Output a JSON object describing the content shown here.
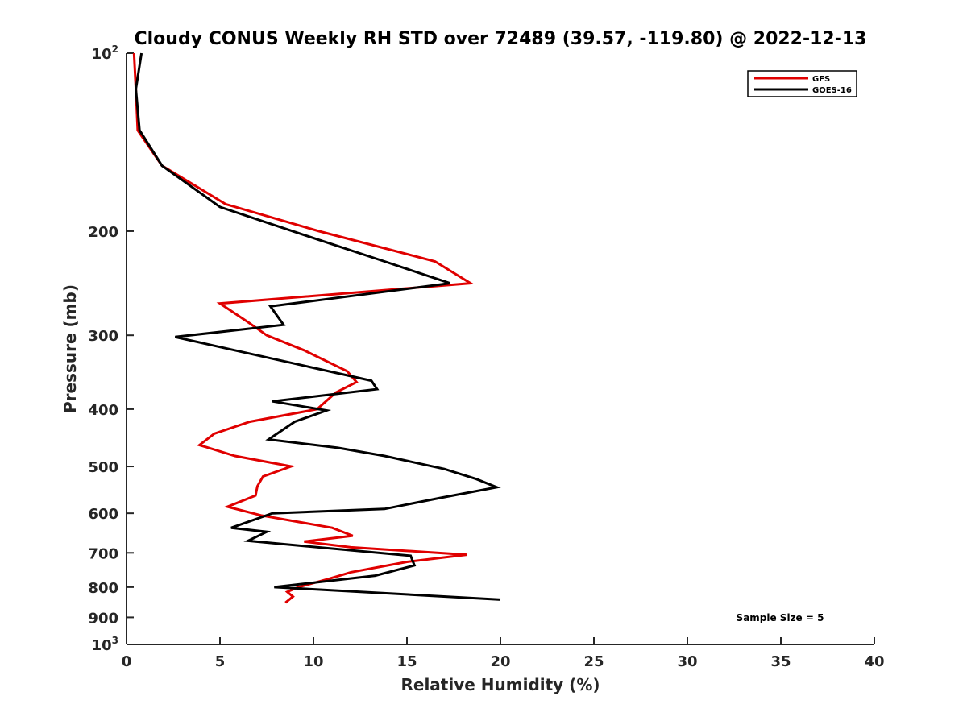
{
  "chart_data": {
    "type": "line",
    "title": "Cloudy CONUS Weekly RH STD over 72489 (39.57, -119.80) @ 2022-12-13",
    "xlabel": "Relative Humidity (%)",
    "ylabel": "Pressure (mb)",
    "xlim": [
      0,
      40
    ],
    "ylim": [
      100,
      1000
    ],
    "y_scale": "log",
    "y_reversed": true,
    "x_ticks": [
      "0",
      "5",
      "10",
      "15",
      "20",
      "25",
      "30",
      "35",
      "40"
    ],
    "y_ticks": [
      {
        "value": 100,
        "base": "10",
        "exp": "2"
      },
      {
        "value": 200,
        "label": "200"
      },
      {
        "value": 300,
        "label": "300"
      },
      {
        "value": 400,
        "label": "400"
      },
      {
        "value": 500,
        "label": "500"
      },
      {
        "value": 600,
        "label": "600"
      },
      {
        "value": 700,
        "label": "700"
      },
      {
        "value": 800,
        "label": "800"
      },
      {
        "value": 900,
        "label": "900"
      },
      {
        "value": 1000,
        "base": "10",
        "exp": "3"
      }
    ],
    "grid": false,
    "legend_position": "top-right",
    "annotation": "Sample Size = 5",
    "series": [
      {
        "name": "GFS",
        "color": "#e00000",
        "points": [
          [
            0.4,
            100
          ],
          [
            0.5,
            115
          ],
          [
            0.6,
            135
          ],
          [
            1.9,
            155
          ],
          [
            5.3,
            180
          ],
          [
            10.3,
            200
          ],
          [
            16.5,
            225
          ],
          [
            18.4,
            245
          ],
          [
            5.0,
            265
          ],
          [
            6.5,
            285
          ],
          [
            7.5,
            300
          ],
          [
            9.5,
            318
          ],
          [
            11.8,
            345
          ],
          [
            12.3,
            360
          ],
          [
            11.2,
            375
          ],
          [
            10.2,
            400
          ],
          [
            6.6,
            420
          ],
          [
            4.7,
            440
          ],
          [
            3.9,
            460
          ],
          [
            5.8,
            480
          ],
          [
            8.8,
            500
          ],
          [
            7.3,
            520
          ],
          [
            7.0,
            540
          ],
          [
            6.9,
            560
          ],
          [
            5.4,
            585
          ],
          [
            7.2,
            605
          ],
          [
            11.0,
            635
          ],
          [
            12.1,
            655
          ],
          [
            9.5,
            670
          ],
          [
            12.0,
            685
          ],
          [
            18.2,
            705
          ],
          [
            15.0,
            725
          ],
          [
            12.0,
            755
          ],
          [
            10.8,
            775
          ],
          [
            9.2,
            800
          ],
          [
            8.6,
            815
          ],
          [
            8.9,
            830
          ],
          [
            8.5,
            850
          ]
        ]
      },
      {
        "name": "GOES-16",
        "color": "#000000",
        "points": [
          [
            0.8,
            100
          ],
          [
            0.5,
            115
          ],
          [
            0.7,
            135
          ],
          [
            1.9,
            155
          ],
          [
            5.0,
            182
          ],
          [
            9.5,
            203
          ],
          [
            13.8,
            225
          ],
          [
            17.3,
            245
          ],
          [
            7.7,
            268
          ],
          [
            8.4,
            288
          ],
          [
            2.6,
            302
          ],
          [
            13.1,
            358
          ],
          [
            13.4,
            370
          ],
          [
            7.8,
            388
          ],
          [
            10.7,
            402
          ],
          [
            9.0,
            420
          ],
          [
            7.6,
            450
          ],
          [
            11.3,
            465
          ],
          [
            13.8,
            480
          ],
          [
            17.0,
            505
          ],
          [
            18.7,
            525
          ],
          [
            19.8,
            542
          ],
          [
            16.8,
            565
          ],
          [
            13.8,
            590
          ],
          [
            7.8,
            600
          ],
          [
            5.6,
            635
          ],
          [
            7.5,
            645
          ],
          [
            6.5,
            668
          ],
          [
            15.2,
            708
          ],
          [
            15.4,
            735
          ],
          [
            13.3,
            765
          ],
          [
            7.9,
            800
          ],
          [
            15.6,
            825
          ],
          [
            20.0,
            840
          ]
        ]
      }
    ]
  }
}
